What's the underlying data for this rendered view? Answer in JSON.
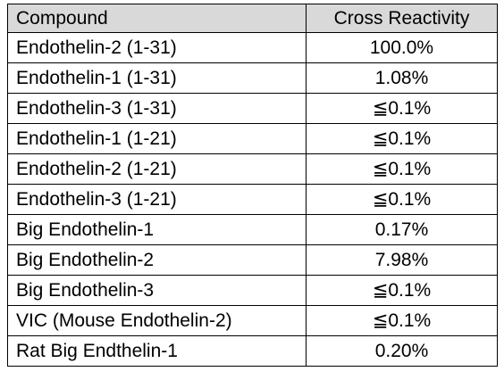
{
  "table": {
    "headers": [
      "Compound",
      "Cross Reactivity"
    ],
    "rows": [
      [
        "Endothelin-2 (1-31)",
        "100.0%"
      ],
      [
        "Endothelin-1 (1-31)",
        "1.08%"
      ],
      [
        "Endothelin-3 (1-31)",
        "≦0.1%"
      ],
      [
        "Endothelin-1 (1-21)",
        "≦0.1%"
      ],
      [
        "Endothelin-2 (1-21)",
        "≦0.1%"
      ],
      [
        "Endothelin-3 (1-21)",
        "≦0.1%"
      ],
      [
        "Big Endothelin-1",
        "0.17%"
      ],
      [
        "Big Endothelin-2",
        "7.98%"
      ],
      [
        "Big Endothelin-3",
        "≦0.1%"
      ],
      [
        "VIC (Mouse Endothelin-2)",
        "≦0.1%"
      ],
      [
        "Rat Big Endthelin-1",
        "0.20%"
      ]
    ]
  },
  "colors": {
    "header_bg": "#d9d9d9",
    "border": "#000000"
  }
}
